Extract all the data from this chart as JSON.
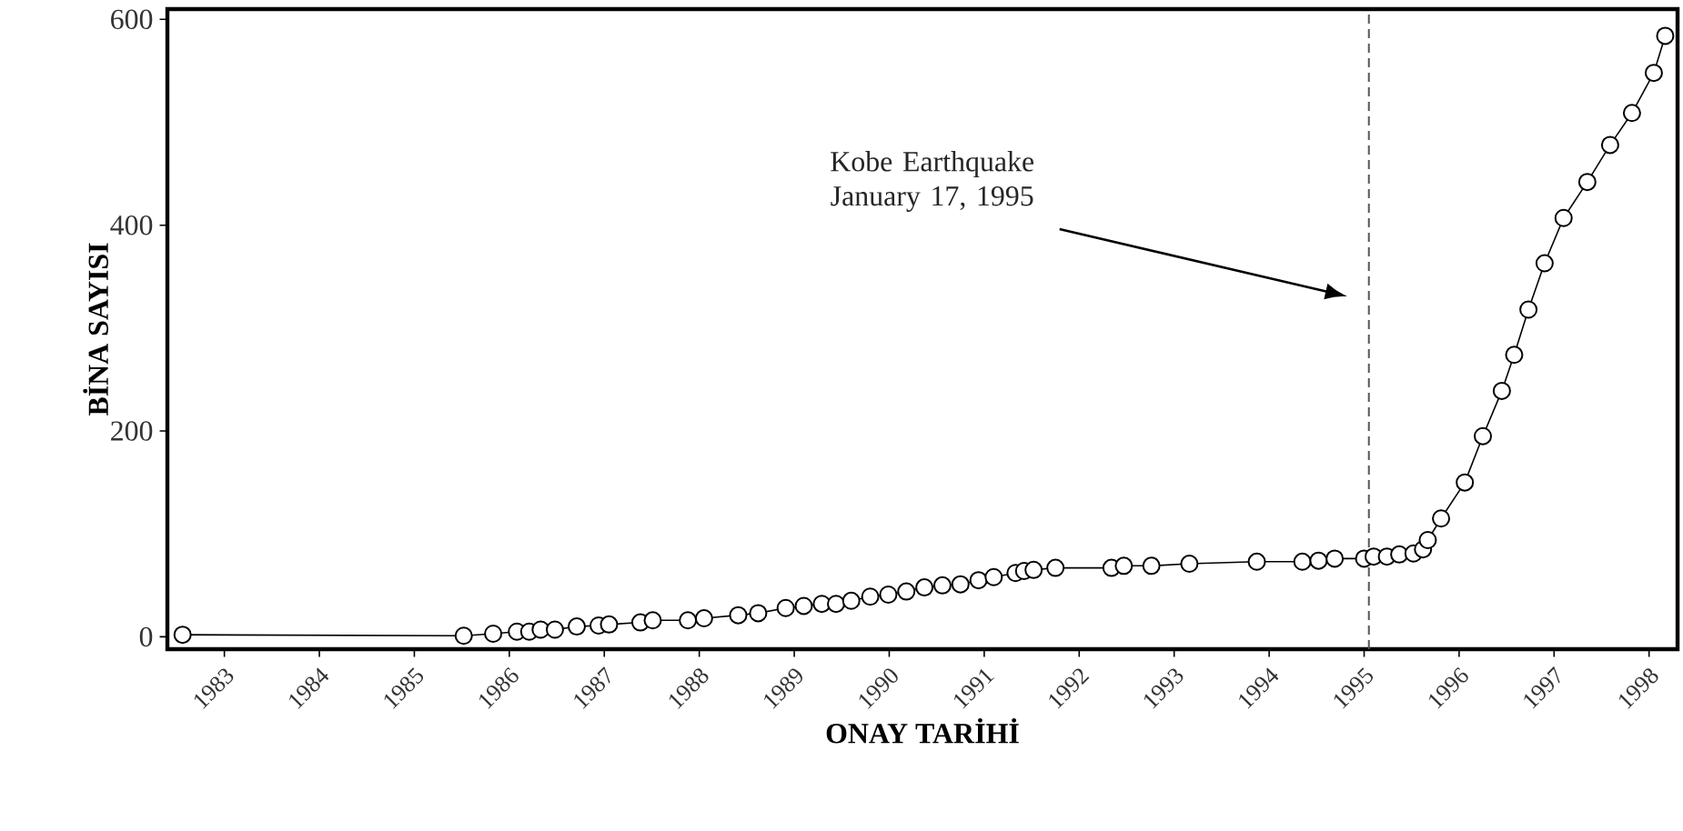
{
  "chart_data": {
    "type": "line",
    "xlabel": "ONAY TAR**İ**H**İ**",
    "ylabel": "BİNA SAYISI",
    "x": [
      1982.56,
      1985.52,
      1985.83,
      1986.08,
      1986.21,
      1986.33,
      1986.48,
      1986.71,
      1986.94,
      1987.05,
      1987.38,
      1987.51,
      1987.88,
      1988.05,
      1988.41,
      1988.62,
      1988.91,
      1989.1,
      1989.29,
      1989.44,
      1989.6,
      1989.8,
      1989.99,
      1990.18,
      1990.37,
      1990.56,
      1990.75,
      1990.94,
      1991.1,
      1991.33,
      1991.42,
      1991.52,
      1991.75,
      1992.34,
      1992.47,
      1992.76,
      1993.16,
      1993.87,
      1994.35,
      1994.52,
      1994.69,
      1995.0,
      1995.1,
      1995.24,
      1995.37,
      1995.52,
      1995.62,
      1995.67,
      1995.81,
      1996.06,
      1996.25,
      1996.45,
      1996.58,
      1996.73,
      1996.9,
      1997.1,
      1997.35,
      1997.59,
      1997.82,
      1998.05,
      1998.17
    ],
    "series": [
      {
        "color": "#000000",
        "values": [
          2,
          1,
          3,
          5,
          5,
          7,
          7,
          10,
          11,
          12,
          14,
          16,
          16,
          18,
          21,
          23,
          28,
          30,
          32,
          32,
          35,
          39,
          41,
          44,
          48,
          50,
          51,
          55,
          58,
          62,
          64,
          65,
          67,
          67,
          69,
          69,
          71,
          73,
          73,
          74,
          76,
          76,
          78,
          78,
          80,
          81,
          85,
          94,
          115,
          150,
          195,
          239,
          274,
          318,
          363,
          407,
          442,
          478,
          509,
          548,
          584
        ]
      }
    ],
    "xlim": [
      1982.4,
      1998.3
    ],
    "ylim": [
      -12,
      610
    ],
    "xticks": [
      1983,
      1984,
      1985,
      1986,
      1987,
      1988,
      1989,
      1990,
      1991,
      1992,
      1993,
      1994,
      1995,
      1996,
      1997,
      1998
    ],
    "yticks": [
      0,
      200,
      400,
      600
    ],
    "ref_lines": [
      {
        "axis": "x",
        "value": 1995.05,
        "color": "#555555",
        "line_style": "dashed"
      }
    ],
    "annotations": [
      "Kobe Earthquake January 17, 1995"
    ],
    "marker": "circle",
    "line_style": "solid",
    "grid": false
  }
}
